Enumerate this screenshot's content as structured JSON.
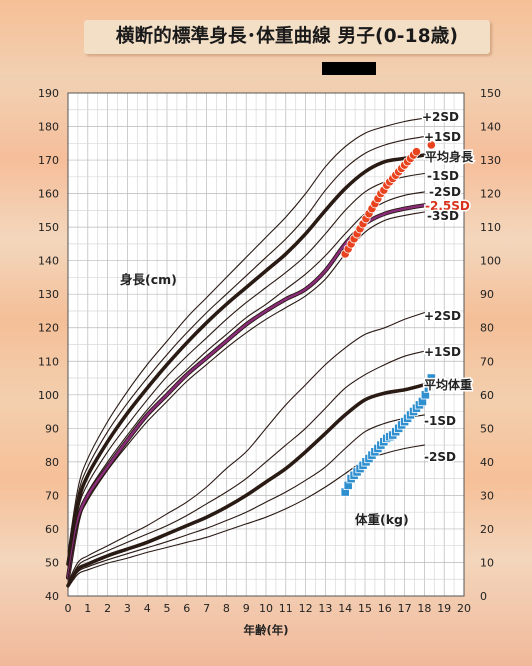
{
  "title": "横断的標準身長･体重曲線 男子(0-18歳)",
  "colors": {
    "mean_line": "#2a1a14",
    "sd_line": "#2a1a14",
    "height_minus25": "#8a2c7a",
    "height_points": "#e8431e",
    "weight_points": "#2f8fcf",
    "title_bg": "#f3dfc6"
  },
  "chart_data": {
    "type": "line",
    "xlabel": "年齢(年)",
    "x_ticks": [
      0,
      1,
      2,
      3,
      4,
      5,
      6,
      7,
      8,
      9,
      10,
      11,
      12,
      13,
      14,
      15,
      16,
      17,
      18,
      19,
      20
    ],
    "y_left": {
      "lim": [
        40,
        190
      ],
      "ticks": [
        40,
        50,
        60,
        70,
        80,
        90,
        100,
        110,
        120,
        130,
        140,
        150,
        160,
        170,
        180,
        190
      ]
    },
    "y_right": {
      "lim": [
        0,
        150
      ],
      "ticks": [
        0,
        10,
        20,
        30,
        40,
        50,
        60,
        70,
        80,
        90,
        100,
        110,
        120,
        130,
        140,
        150
      ]
    },
    "grid": true,
    "height_label": "身長(cm)",
    "weight_label": "体重(kg)",
    "height_curves": [
      {
        "name": "+2SD",
        "label": "+2SD",
        "weight": "thin",
        "x": [
          0,
          0.5,
          1,
          2,
          3,
          4,
          5,
          6,
          7,
          8,
          9,
          10,
          11,
          12,
          13,
          14,
          15,
          16,
          17,
          18
        ],
        "y": [
          53,
          72,
          81,
          92,
          101,
          109,
          116,
          123,
          129,
          135,
          141,
          147,
          153,
          160,
          168,
          174,
          178,
          180,
          181.5,
          182.5
        ]
      },
      {
        "name": "+1SD",
        "label": "+1SD",
        "weight": "thin",
        "x": [
          0,
          0.5,
          1,
          2,
          3,
          4,
          5,
          6,
          7,
          8,
          9,
          10,
          11,
          12,
          13,
          14,
          15,
          16,
          17,
          18
        ],
        "y": [
          51.5,
          70,
          78.5,
          89,
          97.5,
          105,
          112,
          118.5,
          124.5,
          130,
          135.5,
          141,
          146.5,
          153,
          161,
          167.5,
          172,
          174.5,
          176,
          177
        ]
      },
      {
        "name": "Mean",
        "label": "平均身長",
        "weight": "thick",
        "x": [
          0,
          0.5,
          1,
          2,
          3,
          4,
          5,
          6,
          7,
          8,
          9,
          10,
          11,
          12,
          13,
          14,
          15,
          16,
          17,
          18
        ],
        "y": [
          49.5,
          67.5,
          76,
          86,
          94.5,
          102,
          109,
          115.5,
          121.5,
          127,
          132,
          137,
          142,
          148,
          155,
          161.5,
          166.5,
          169.5,
          170.5,
          171.5
        ]
      },
      {
        "name": "-1SD",
        "label": "-1SD",
        "weight": "thin",
        "x": [
          0,
          0.5,
          1,
          2,
          3,
          4,
          5,
          6,
          7,
          8,
          9,
          10,
          11,
          12,
          13,
          14,
          15,
          16,
          17,
          18
        ],
        "y": [
          48,
          65.5,
          73.5,
          83,
          91,
          98.5,
          105.5,
          111.5,
          117,
          122.5,
          127.5,
          132,
          136.5,
          141.5,
          148,
          155,
          160.5,
          163.5,
          165,
          166
        ]
      },
      {
        "name": "-2SD",
        "label": "-2SD",
        "weight": "thin",
        "x": [
          0,
          0.5,
          1,
          2,
          3,
          4,
          5,
          6,
          7,
          8,
          9,
          10,
          11,
          12,
          13,
          14,
          15,
          16,
          17,
          18
        ],
        "y": [
          46.5,
          63.5,
          71,
          80,
          88,
          95.5,
          102,
          107.5,
          113,
          118,
          123,
          127,
          131.5,
          136,
          141.5,
          148,
          154,
          157.5,
          159.5,
          160.5
        ]
      },
      {
        "name": "-2.5SD",
        "label": "-2.5SD",
        "weight": "purple",
        "x": [
          0,
          0.5,
          1,
          2,
          3,
          4,
          5,
          6,
          7,
          8,
          9,
          10,
          11,
          12,
          13,
          14,
          15,
          16,
          17,
          18
        ],
        "y": [
          45.5,
          62.5,
          70,
          78.5,
          86.5,
          94,
          100,
          106,
          111,
          116,
          121,
          125,
          128.5,
          131.5,
          137,
          145,
          151,
          154,
          155.5,
          156.5
        ]
      },
      {
        "name": "-3SD",
        "label": "-3SD",
        "weight": "thin",
        "x": [
          0,
          0.5,
          1,
          2,
          3,
          4,
          5,
          6,
          7,
          8,
          9,
          10,
          11,
          12,
          13,
          14,
          15,
          16,
          17,
          18
        ],
        "y": [
          45,
          61.5,
          68.5,
          77.5,
          85,
          92,
          98,
          104,
          109,
          114,
          118.5,
          122.5,
          126,
          129.5,
          134.5,
          142,
          148.5,
          152,
          153.5,
          154.5
        ]
      }
    ],
    "weight_curves": [
      {
        "name": "+2SD",
        "label": "+2SD",
        "weight": "thin",
        "x": [
          0,
          0.5,
          1,
          2,
          3,
          4,
          5,
          6,
          7,
          8,
          9,
          10,
          11,
          12,
          13,
          14,
          15,
          16,
          17,
          18
        ],
        "y": [
          4,
          10,
          12,
          15,
          18,
          21,
          24.5,
          28,
          32.5,
          38,
          43,
          50,
          57,
          63,
          69,
          74,
          78,
          80,
          82.5,
          84.5
        ]
      },
      {
        "name": "+1SD",
        "label": "+1SD",
        "weight": "thin",
        "x": [
          0,
          0.5,
          1,
          2,
          3,
          4,
          5,
          6,
          7,
          8,
          9,
          10,
          11,
          12,
          13,
          14,
          15,
          16,
          17,
          18
        ],
        "y": [
          3.5,
          9,
          11,
          13.5,
          16,
          18.5,
          21,
          24,
          27.5,
          31,
          35,
          40,
          45,
          50,
          56,
          62,
          66,
          69,
          71.5,
          73
        ]
      },
      {
        "name": "Mean",
        "label": "平均体重",
        "weight": "thick",
        "x": [
          0,
          0.5,
          1,
          2,
          3,
          4,
          5,
          6,
          7,
          8,
          9,
          10,
          11,
          12,
          13,
          14,
          15,
          16,
          17,
          18
        ],
        "y": [
          3.1,
          8,
          9.5,
          12,
          14,
          16,
          18.5,
          21,
          23.5,
          26.5,
          30,
          34,
          38,
          43,
          48.5,
          54,
          58.5,
          60.5,
          61.5,
          63
        ]
      },
      {
        "name": "-1SD",
        "label": "-1SD",
        "weight": "thin",
        "x": [
          0,
          0.5,
          1,
          2,
          3,
          4,
          5,
          6,
          7,
          8,
          9,
          10,
          11,
          12,
          13,
          14,
          15,
          16,
          17,
          18
        ],
        "y": [
          2.8,
          7.2,
          8.7,
          10.8,
          12.6,
          14.4,
          16.2,
          18.2,
          20.2,
          22.5,
          25,
          28,
          31,
          34.5,
          38.5,
          44,
          49,
          51.5,
          53,
          54
        ]
      },
      {
        "name": "-2SD",
        "label": "-2SD",
        "weight": "thin",
        "x": [
          0,
          0.5,
          1,
          2,
          3,
          4,
          5,
          6,
          7,
          8,
          9,
          10,
          11,
          12,
          13,
          14,
          15,
          16,
          17,
          18
        ],
        "y": [
          2.5,
          6.5,
          7.8,
          9.8,
          11.3,
          13,
          14.5,
          16,
          17.5,
          19.5,
          21.5,
          23.5,
          26,
          29,
          32.5,
          36.5,
          40.5,
          42.5,
          44,
          45
        ]
      }
    ],
    "height_points": {
      "x": [
        14.0,
        14.15,
        14.3,
        14.45,
        14.6,
        14.75,
        14.9,
        15.05,
        15.2,
        15.35,
        15.5,
        15.65,
        15.8,
        15.95,
        16.1,
        16.25,
        16.4,
        16.55,
        16.7,
        16.85,
        17.0,
        17.15,
        17.3,
        17.45,
        17.6,
        18.35
      ],
      "y": [
        142,
        143.5,
        145,
        146.5,
        148,
        149.5,
        151,
        152.5,
        154,
        155.5,
        157,
        158.5,
        160,
        161,
        162.5,
        163.5,
        164.5,
        165.5,
        166.5,
        167.5,
        168.5,
        169.5,
        170.5,
        171.5,
        172.5,
        174.5
      ]
    },
    "weight_points": {
      "x": [
        14.0,
        14.15,
        14.3,
        14.45,
        14.6,
        14.75,
        14.9,
        15.05,
        15.2,
        15.35,
        15.5,
        15.65,
        15.8,
        15.95,
        16.1,
        16.25,
        16.4,
        16.55,
        16.7,
        16.85,
        17.0,
        17.15,
        17.3,
        17.45,
        17.6,
        17.75,
        17.9,
        18.05,
        18.2,
        18.35
      ],
      "y": [
        31,
        33,
        35,
        36,
        37,
        38,
        39,
        40,
        41,
        42,
        43,
        44,
        45,
        46,
        47,
        47.5,
        48,
        49,
        50,
        51,
        52,
        53,
        54,
        55,
        56,
        57,
        58,
        60,
        62,
        65
      ]
    },
    "labels": {
      "mean_height": "平均身長",
      "mean_weight": "平均体重",
      "minus25": "-2.5SD"
    }
  }
}
